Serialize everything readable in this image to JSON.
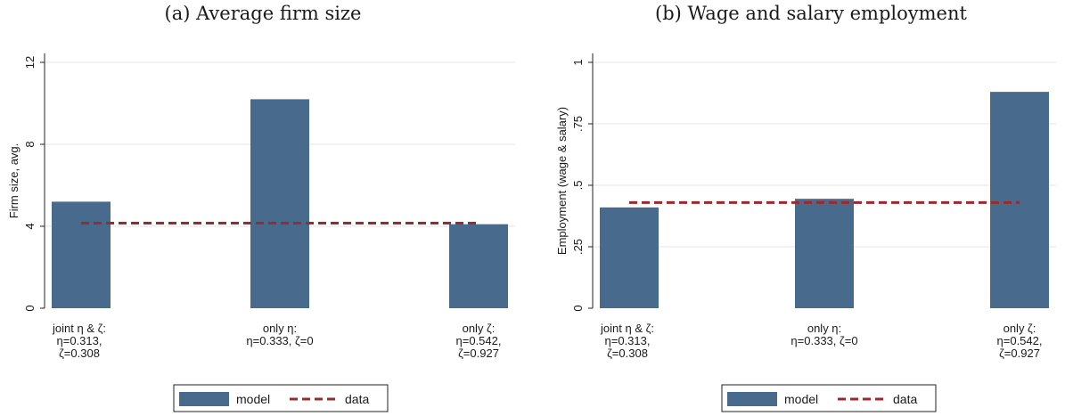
{
  "bar_color": "#486a8c",
  "data_color": "#9b2a2f",
  "legend": {
    "model_label": "model",
    "data_label": "data"
  },
  "chart_data": [
    {
      "type": "bar",
      "title": "(a) Average firm size",
      "ylabel": "Firm size, avg.",
      "categories": [
        [
          "joint η & ζ:",
          "η=0.313,",
          "ζ=0.308"
        ],
        [
          "only η:",
          "η=0.333, ζ=0"
        ],
        [
          "only ζ:",
          "η=0.542,",
          "ζ=0.927"
        ]
      ],
      "ylim": [
        0,
        12
      ],
      "yticks": [
        "0",
        "4",
        "8",
        "12"
      ],
      "ytick_values": [
        0,
        4,
        8,
        12
      ],
      "grid": true,
      "series": [
        {
          "name": "model",
          "type": "bar",
          "values": [
            5.2,
            10.2,
            4.1
          ]
        },
        {
          "name": "data",
          "type": "line",
          "style": "dashed",
          "value": 4.15
        }
      ]
    },
    {
      "type": "bar",
      "title": "(b) Wage and salary employment",
      "ylabel": "Employment (wage & salary)",
      "categories": [
        [
          "joint η & ζ:",
          "η=0.313,",
          "ζ=0.308"
        ],
        [
          "only η:",
          "η=0.333, ζ=0"
        ],
        [
          "only ζ:",
          "η=0.542,",
          "ζ=0.927"
        ]
      ],
      "ylim": [
        0,
        1
      ],
      "yticks": [
        "0",
        ".25",
        ".5",
        ".75",
        "1"
      ],
      "ytick_values": [
        0,
        0.25,
        0.5,
        0.75,
        1
      ],
      "grid": true,
      "series": [
        {
          "name": "model",
          "type": "bar",
          "values": [
            0.41,
            0.445,
            0.88
          ]
        },
        {
          "name": "data",
          "type": "line",
          "style": "dashed",
          "value": 0.43
        }
      ]
    }
  ]
}
